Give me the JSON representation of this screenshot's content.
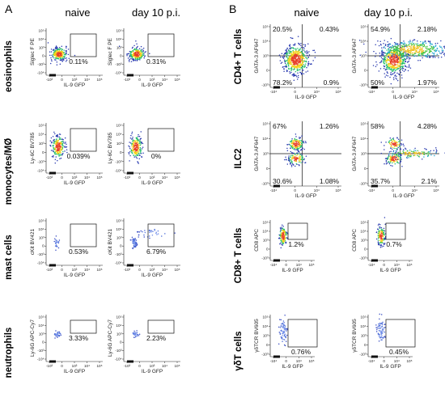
{
  "figure": {
    "panels": [
      {
        "letter": "A",
        "columns": [
          "naive",
          "day 10 p.i."
        ],
        "x_axis_label": "IL-9 GFP",
        "x_ticks": [
          "-10³",
          "0",
          "10³",
          "10⁴",
          "10⁵"
        ],
        "y_ticks": [
          "10⁵",
          "10⁴",
          "10³",
          "0",
          "-10³",
          "-10⁴"
        ],
        "rows": [
          {
            "name": "eosinophils",
            "y_axis_label": "Siglec F PE",
            "values": [
              "0.11%",
              "0.31%"
            ]
          },
          {
            "name": "monocytes/MØ",
            "y_axis_label": "Ly-6C BV785",
            "values": [
              "0.039%",
              "0%"
            ]
          },
          {
            "name": "mast cells",
            "y_axis_label": "cKit BV421",
            "values": [
              "0.53%",
              "6.79%"
            ]
          },
          {
            "name": "neutrophils",
            "y_axis_label": "Ly-6G APC-Cy7",
            "values": [
              "3.33%",
              "2.23%"
            ]
          }
        ]
      },
      {
        "letter": "B",
        "columns": [
          "naive",
          "day 10 p.i."
        ],
        "x_axis_label": "IL-9 GFP",
        "x_ticks": [
          "-10⁴",
          "0",
          "10⁴",
          "10⁵"
        ],
        "y_ticks": [
          "10⁵",
          "10⁴",
          "10³",
          "0",
          "-10³"
        ],
        "rows": [
          {
            "name": "CD4+ T cells",
            "y_axis_label": "GATA-3 AF647",
            "type": "quadrant",
            "quadrants": [
              [
                "20.5%",
                "0.43%",
                "78.2%",
                "0.9%"
              ],
              [
                "54.9%",
                "2.18%",
                "50%",
                "1.97%"
              ]
            ]
          },
          {
            "name": "ILC2",
            "y_axis_label": "GATA-3 AF647",
            "type": "quadrant",
            "quadrants": [
              [
                "67%",
                "1.26%",
                "30.6%",
                "1.08%"
              ],
              [
                "58%",
                "4.28%",
                "35.7%",
                "2.1%"
              ]
            ]
          },
          {
            "name": "CD8+ T cells",
            "y_axis_label": "CD8 APC",
            "type": "gate",
            "values": [
              "1.2%",
              "0.7%"
            ]
          },
          {
            "name": "γδT cells",
            "y_axis_label": "γδTCR BV605",
            "type": "gate",
            "values": [
              "0.76%",
              "0.45%"
            ]
          }
        ]
      }
    ]
  }
}
